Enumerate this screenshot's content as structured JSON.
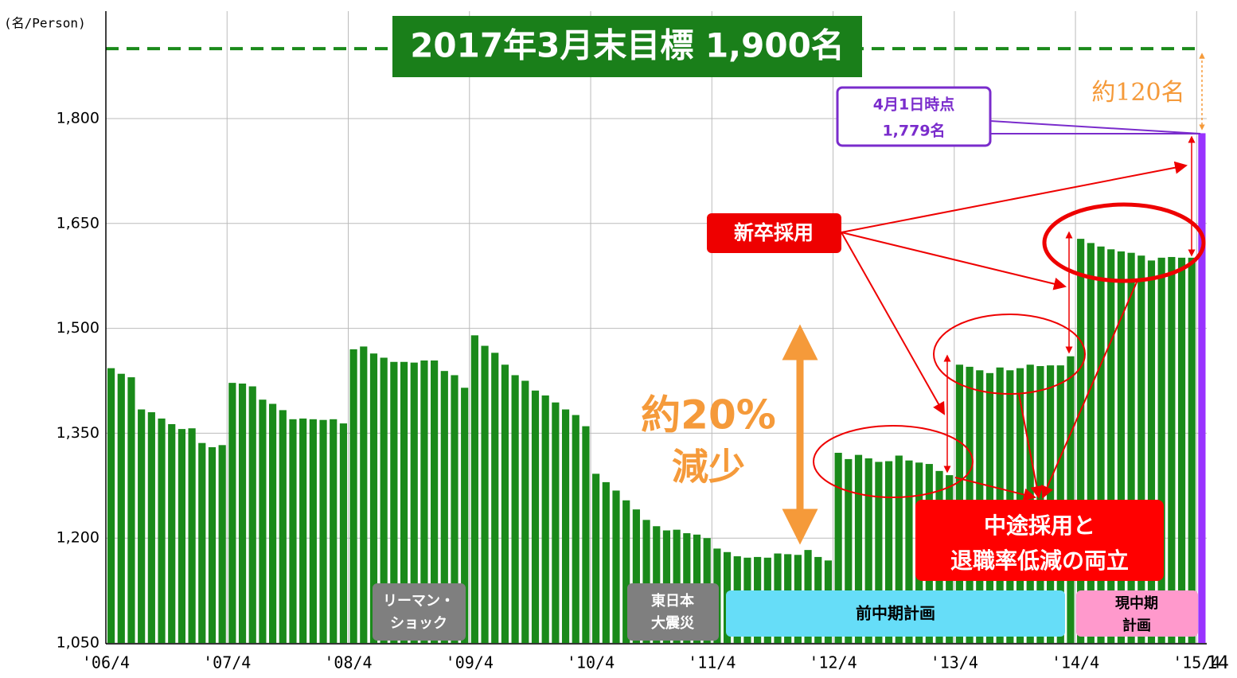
{
  "chart_data": {
    "type": "bar",
    "title": "2017年3月末目標  1,900名",
    "y_unit": "(名/Person)",
    "target": 1900,
    "categories": [
      "'06/4",
      null,
      null,
      null,
      null,
      null,
      null,
      null,
      null,
      null,
      null,
      null,
      "'07/4",
      null,
      null,
      null,
      null,
      null,
      null,
      null,
      null,
      null,
      null,
      null,
      "'08/4",
      null,
      null,
      null,
      null,
      null,
      null,
      null,
      null,
      null,
      null,
      null,
      "'09/4",
      null,
      null,
      null,
      null,
      null,
      null,
      null,
      null,
      null,
      null,
      null,
      "'10/4",
      null,
      null,
      null,
      null,
      null,
      null,
      null,
      null,
      null,
      null,
      null,
      "'11/4",
      null,
      null,
      null,
      null,
      null,
      null,
      null,
      null,
      null,
      null,
      null,
      "'12/4",
      null,
      null,
      null,
      null,
      null,
      null,
      null,
      null,
      null,
      null,
      null,
      "'13/4",
      null,
      null,
      null,
      null,
      null,
      null,
      null,
      null,
      null,
      null,
      null,
      "'14/4",
      null,
      null,
      null,
      null,
      null,
      null,
      null,
      null,
      null,
      null,
      null,
      "'15/4"
    ],
    "values": [
      1443,
      1435,
      1430,
      1384,
      1380,
      1371,
      1363,
      1356,
      1357,
      1336,
      1330,
      1333,
      1422,
      1421,
      1417,
      1398,
      1392,
      1383,
      1370,
      1371,
      1370,
      1369,
      1370,
      1364,
      1470,
      1474,
      1464,
      1458,
      1452,
      1452,
      1451,
      1454,
      1454,
      1439,
      1433,
      1415,
      1490,
      1475,
      1465,
      1448,
      1433,
      1425,
      1411,
      1404,
      1394,
      1384,
      1376,
      1360,
      1292,
      1280,
      1268,
      1254,
      1241,
      1226,
      1217,
      1211,
      1212,
      1207,
      1205,
      1200,
      1185,
      1180,
      1174,
      1172,
      1173,
      1172,
      1178,
      1177,
      1176,
      1183,
      1173,
      1168,
      1322,
      1313,
      1319,
      1314,
      1309,
      1310,
      1318,
      1311,
      1308,
      1306,
      1296,
      1290,
      1448,
      1445,
      1440,
      1436,
      1444,
      1440,
      1443,
      1448,
      1446,
      1447,
      1447,
      1460,
      1628,
      1622,
      1617,
      1613,
      1610,
      1608,
      1604,
      1597,
      1601,
      1602,
      1601,
      1601,
      1779
    ],
    "color": "#1a8a1a",
    "highlight": {
      "index": 108,
      "color": "#9933ff"
    },
    "target_color": "#1a8a1a",
    "ylim": [
      1050,
      1950
    ],
    "yticks": [
      {
        "value": 1050,
        "label": "1,050"
      },
      {
        "value": 1200,
        "label": "1,200"
      },
      {
        "value": 1350,
        "label": "1,350"
      },
      {
        "value": 1500,
        "label": "1,500"
      },
      {
        "value": 1650,
        "label": "1,650"
      },
      {
        "value": 1800,
        "label": "1,800"
      }
    ],
    "grid": true,
    "annotations": {
      "gap": "約120名",
      "point": [
        "4月1日時点",
        "1,779名"
      ],
      "new_grad": "新卒採用",
      "decrease": [
        "約20%",
        "減少"
      ],
      "mid_career": [
        "中途採用と",
        "退職率低減の両立"
      ],
      "periods": [
        [
          "リーマン・",
          "ショック"
        ],
        [
          "東日本",
          "大震災"
        ],
        [
          "前中期計画"
        ],
        [
          "現中期",
          "計画"
        ]
      ]
    },
    "page": "14"
  }
}
